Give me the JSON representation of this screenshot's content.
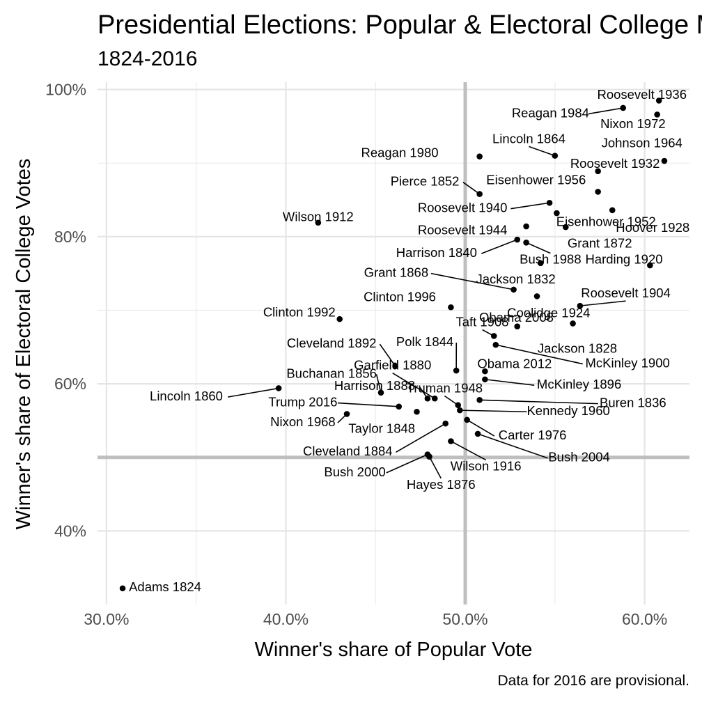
{
  "chart_data": {
    "type": "scatter",
    "title": "Presidential Elections: Popular & Electoral College Margins",
    "subtitle": "1824-2016",
    "xlabel": "Winner's share of Popular Vote",
    "ylabel": "Winner's share of Electoral College Votes",
    "caption": "Data for 2016 are provisional.",
    "xlim": [
      0.295,
      0.625
    ],
    "ylim": [
      0.3,
      1.01
    ],
    "x_ticks": [
      {
        "value": 0.3,
        "label": "30.0%"
      },
      {
        "value": 0.4,
        "label": "40.0%"
      },
      {
        "value": 0.5,
        "label": "50.0%"
      },
      {
        "value": 0.6,
        "label": "60.0%"
      }
    ],
    "y_ticks": [
      {
        "value": 0.4,
        "label": "40%"
      },
      {
        "value": 0.6,
        "label": "60%"
      },
      {
        "value": 0.8,
        "label": "80%"
      },
      {
        "value": 1.0,
        "label": "100%"
      }
    ],
    "reference_lines": {
      "x": 0.5,
      "y": 0.5
    },
    "grid": true,
    "points": [
      {
        "label": "Adams 1824",
        "x": 0.309,
        "y": 0.322,
        "lx": 0.3125,
        "ly": 0.3225,
        "anchor": "start"
      },
      {
        "label": "Jackson 1828",
        "x": 0.56,
        "y": 0.682,
        "lx": 0.5625,
        "ly": 0.647,
        "anchor": "middle"
      },
      {
        "label": "Jackson 1832",
        "x": 0.542,
        "y": 0.764,
        "lx": 0.506,
        "ly": 0.741,
        "anchor": "start"
      },
      {
        "label": "Buren 1836",
        "x": 0.508,
        "y": 0.578,
        "lx": 0.5935,
        "ly": 0.573,
        "anchor": "middle",
        "leader": true
      },
      {
        "label": "Harrison 1840",
        "x": 0.529,
        "y": 0.796,
        "lx": 0.484,
        "ly": 0.777,
        "anchor": "middle",
        "leader": true
      },
      {
        "label": "Polk 1844",
        "x": 0.495,
        "y": 0.618,
        "lx": 0.4775,
        "ly": 0.656,
        "anchor": "middle",
        "leader": true
      },
      {
        "label": "Taylor 1848",
        "x": 0.473,
        "y": 0.562,
        "lx": 0.4535,
        "ly": 0.538,
        "anchor": "middle"
      },
      {
        "label": "Pierce 1852",
        "x": 0.508,
        "y": 0.858,
        "lx": 0.4775,
        "ly": 0.874,
        "anchor": "middle",
        "leader": true
      },
      {
        "label": "Buchanan 1856",
        "x": 0.453,
        "y": 0.588,
        "lx": 0.4255,
        "ly": 0.613,
        "anchor": "middle",
        "leader": true
      },
      {
        "label": "Lincoln 1860",
        "x": 0.396,
        "y": 0.594,
        "lx": 0.3445,
        "ly": 0.582,
        "anchor": "middle",
        "leader": true
      },
      {
        "label": "Lincoln 1864",
        "x": 0.55,
        "y": 0.91,
        "lx": 0.5355,
        "ly": 0.932,
        "anchor": "middle",
        "leader": true
      },
      {
        "label": "Grant 1868",
        "x": 0.527,
        "y": 0.728,
        "lx": 0.4615,
        "ly": 0.75,
        "anchor": "middle",
        "leader": true
      },
      {
        "label": "Grant 1872",
        "x": 0.556,
        "y": 0.813,
        "lx": 0.575,
        "ly": 0.79,
        "anchor": "middle"
      },
      {
        "label": "Hayes 1876",
        "x": 0.48,
        "y": 0.501,
        "lx": 0.4865,
        "ly": 0.462,
        "anchor": "middle",
        "leader": true
      },
      {
        "label": "Garfield 1880",
        "x": 0.483,
        "y": 0.58,
        "lx": 0.4595,
        "ly": 0.624,
        "anchor": "middle",
        "leader": true
      },
      {
        "label": "Cleveland 1884",
        "x": 0.489,
        "y": 0.546,
        "lx": 0.4345,
        "ly": 0.507,
        "anchor": "middle",
        "leader": true
      },
      {
        "label": "Harrison 1888",
        "x": 0.479,
        "y": 0.58,
        "lx": 0.4495,
        "ly": 0.596,
        "anchor": "middle",
        "leader": true
      },
      {
        "label": "Cleveland 1892",
        "x": 0.461,
        "y": 0.624,
        "lx": 0.4255,
        "ly": 0.654,
        "anchor": "middle",
        "leader": true
      },
      {
        "label": "McKinley 1896",
        "x": 0.511,
        "y": 0.606,
        "lx": 0.5635,
        "ly": 0.598,
        "anchor": "middle",
        "leader": true
      },
      {
        "label": "McKinley 1900",
        "x": 0.517,
        "y": 0.653,
        "lx": 0.5905,
        "ly": 0.627,
        "anchor": "middle",
        "leader": true
      },
      {
        "label": "Roosevelt 1904",
        "x": 0.564,
        "y": 0.706,
        "lx": 0.5895,
        "ly": 0.722,
        "anchor": "middle",
        "leader": true
      },
      {
        "label": "Taft 1908",
        "x": 0.516,
        "y": 0.665,
        "lx": 0.5095,
        "ly": 0.683,
        "anchor": "middle",
        "leader": true
      },
      {
        "label": "Wilson 1912",
        "x": 0.418,
        "y": 0.819,
        "lx": 0.418,
        "ly": 0.826,
        "anchor": "middle"
      },
      {
        "label": "Wilson 1916",
        "x": 0.492,
        "y": 0.522,
        "lx": 0.5115,
        "ly": 0.487,
        "anchor": "middle",
        "leader": true
      },
      {
        "label": "Harding 1920",
        "x": 0.603,
        "y": 0.761,
        "lx": 0.5885,
        "ly": 0.768,
        "anchor": "middle"
      },
      {
        "label": "Coolidge 1924",
        "x": 0.54,
        "y": 0.719,
        "lx": 0.5465,
        "ly": 0.695,
        "anchor": "middle"
      },
      {
        "label": "Hoover 1928",
        "x": 0.582,
        "y": 0.836,
        "lx": 0.6045,
        "ly": 0.811,
        "anchor": "middle"
      },
      {
        "label": "Roosevelt 1932",
        "x": 0.574,
        "y": 0.889,
        "lx": 0.5835,
        "ly": 0.898,
        "anchor": "middle"
      },
      {
        "label": "Roosevelt 1936",
        "x": 0.608,
        "y": 0.985,
        "lx": 0.5985,
        "ly": 0.992,
        "anchor": "middle"
      },
      {
        "label": "Roosevelt 1940",
        "x": 0.547,
        "y": 0.846,
        "lx": 0.4985,
        "ly": 0.838,
        "anchor": "middle",
        "leader": true
      },
      {
        "label": "Roosevelt 1944",
        "x": 0.534,
        "y": 0.814,
        "lx": 0.4985,
        "ly": 0.808,
        "anchor": "middle"
      },
      {
        "label": "Truman 1948",
        "x": 0.496,
        "y": 0.571,
        "lx": 0.4885,
        "ly": 0.593,
        "anchor": "middle",
        "leader": true
      },
      {
        "label": "Eisenhower 1952",
        "x": 0.551,
        "y": 0.832,
        "lx": 0.5785,
        "ly": 0.819,
        "anchor": "middle"
      },
      {
        "label": "Eisenhower 1956",
        "x": 0.574,
        "y": 0.861,
        "lx": 0.5395,
        "ly": 0.876,
        "anchor": "middle"
      },
      {
        "label": "Kennedy 1960",
        "x": 0.497,
        "y": 0.564,
        "lx": 0.5575,
        "ly": 0.562,
        "anchor": "middle",
        "leader": true
      },
      {
        "label": "Johnson 1964",
        "x": 0.611,
        "y": 0.903,
        "lx": 0.5985,
        "ly": 0.926,
        "anchor": "middle"
      },
      {
        "label": "Nixon 1968",
        "x": 0.434,
        "y": 0.559,
        "lx": 0.4095,
        "ly": 0.547,
        "anchor": "middle",
        "leader": true
      },
      {
        "label": "Nixon 1972",
        "x": 0.607,
        "y": 0.966,
        "lx": 0.5935,
        "ly": 0.952,
        "anchor": "middle"
      },
      {
        "label": "Carter 1976",
        "x": 0.501,
        "y": 0.551,
        "lx": 0.5375,
        "ly": 0.529,
        "anchor": "middle",
        "leader": true
      },
      {
        "label": "Reagan 1980",
        "x": 0.508,
        "y": 0.909,
        "lx": 0.4635,
        "ly": 0.913,
        "anchor": "middle"
      },
      {
        "label": "Reagan 1984",
        "x": 0.588,
        "y": 0.975,
        "lx": 0.5475,
        "ly": 0.967,
        "anchor": "middle",
        "leader": true
      },
      {
        "label": "Bush 1988",
        "x": 0.534,
        "y": 0.792,
        "lx": 0.5475,
        "ly": 0.768,
        "anchor": "middle",
        "leader": true
      },
      {
        "label": "Clinton 1992",
        "x": 0.43,
        "y": 0.688,
        "lx": 0.4075,
        "ly": 0.696,
        "anchor": "middle"
      },
      {
        "label": "Clinton 1996",
        "x": 0.492,
        "y": 0.704,
        "lx": 0.4635,
        "ly": 0.717,
        "anchor": "middle"
      },
      {
        "label": "Bush 2000",
        "x": 0.479,
        "y": 0.504,
        "lx": 0.4385,
        "ly": 0.479,
        "anchor": "middle",
        "leader": true
      },
      {
        "label": "Bush 2004",
        "x": 0.507,
        "y": 0.532,
        "lx": 0.5635,
        "ly": 0.499,
        "anchor": "middle",
        "leader": true
      },
      {
        "label": "Obama 2008",
        "x": 0.529,
        "y": 0.678,
        "lx": 0.5285,
        "ly": 0.689,
        "anchor": "middle"
      },
      {
        "label": "Obama 2012",
        "x": 0.511,
        "y": 0.617,
        "lx": 0.5275,
        "ly": 0.626,
        "anchor": "middle"
      },
      {
        "label": "Trump 2016",
        "x": 0.463,
        "y": 0.569,
        "lx": 0.4095,
        "ly": 0.574,
        "anchor": "middle",
        "leader": true
      }
    ]
  }
}
